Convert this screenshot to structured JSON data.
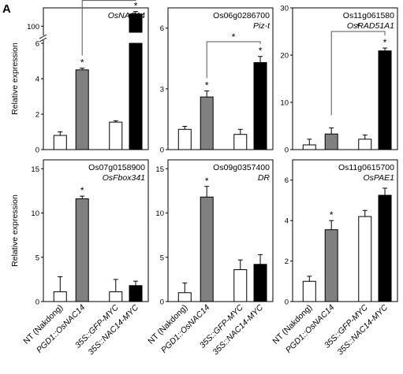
{
  "figure": {
    "panel_label": "A"
  },
  "legend_categories": [
    "NT (Nakdong)",
    "PGD1::OsNAC14",
    "35S::GFP-MYC",
    "35S::NAC14-MYC"
  ],
  "legend_italic": [
    false,
    true,
    true,
    true
  ],
  "bar_fills": [
    "#ffffff",
    "#808080",
    "#ffffff",
    "#000000"
  ],
  "chart_data": [
    {
      "type": "bar",
      "title": "",
      "gene_name": "OsNAC14",
      "ylabel": "Relative expression",
      "categories": [
        "NT (Nakdong)",
        "PGD1::OsNAC14",
        "35S::GFP-MYC",
        "35S::NAC14-MYC"
      ],
      "values": [
        0.8,
        4.5,
        1.55,
        110
      ],
      "errors": [
        0.2,
        0.1,
        0.08,
        2
      ],
      "y_break": {
        "lower": [
          0,
          6
        ],
        "upper": [
          95,
          115
        ]
      },
      "ticks_lower": [
        "0",
        "2",
        "4",
        "6"
      ],
      "ticks_upper": [
        "100"
      ],
      "stars": [
        1,
        3
      ],
      "bracket": [
        1,
        3
      ]
    },
    {
      "type": "bar",
      "title": "Os06g0286700",
      "gene_name": "Piz-t",
      "ylabel": "",
      "categories": [
        "NT (Nakdong)",
        "PGD1::OsNAC14",
        "35S::GFP-MYC",
        "35S::NAC14-MYC"
      ],
      "values": [
        1.0,
        2.6,
        0.75,
        4.3
      ],
      "errors": [
        0.15,
        0.3,
        0.25,
        0.3
      ],
      "ylim": [
        0,
        7
      ],
      "ticks": [
        "0",
        "3",
        "6"
      ],
      "stars": [
        1,
        3
      ],
      "bracket": [
        1,
        3
      ]
    },
    {
      "type": "bar",
      "title": "Os11g061580",
      "gene_name": "OsRAD51A1",
      "ylabel": "",
      "categories": [
        "NT (Nakdong)",
        "PGD1::OsNAC14",
        "35S::GFP-MYC",
        "35S::NAC14-MYC"
      ],
      "values": [
        1.0,
        3.3,
        2.2,
        20.9
      ],
      "errors": [
        1.2,
        1.3,
        0.9,
        0.6
      ],
      "ylim": [
        0,
        30
      ],
      "ticks": [
        "0",
        "10",
        "20",
        "30"
      ],
      "stars": [
        3
      ],
      "bracket": [
        1,
        3
      ]
    },
    {
      "type": "bar",
      "title": "Os07g0158900",
      "gene_name": "OsFbox341",
      "ylabel": "Relative expression",
      "categories": [
        "NT (Nakdong)",
        "PGD1::OsNAC14",
        "35S::GFP-MYC",
        "35S::NAC14-MYC"
      ],
      "values": [
        1.1,
        11.6,
        1.1,
        1.8
      ],
      "errors": [
        1.7,
        0.3,
        1.4,
        0.5
      ],
      "ylim": [
        0,
        16
      ],
      "ticks": [
        "0",
        "5",
        "10",
        "15"
      ],
      "stars": [
        1
      ],
      "bracket": []
    },
    {
      "type": "bar",
      "title": "Os09g0357400",
      "gene_name": "DR",
      "ylabel": "",
      "categories": [
        "NT (Nakdong)",
        "PGD1::OsNAC14",
        "35S::GFP-MYC",
        "35S::NAC14-MYC"
      ],
      "values": [
        1.0,
        11.8,
        3.6,
        4.2
      ],
      "errors": [
        1.1,
        1.2,
        1.1,
        1.1
      ],
      "ylim": [
        0,
        16
      ],
      "ticks": [
        "0",
        "5",
        "10",
        "15"
      ],
      "stars": [
        1
      ],
      "bracket": []
    },
    {
      "type": "bar",
      "title": "Os11g0615700",
      "gene_name": "OsPAE1",
      "ylabel": "",
      "categories": [
        "NT (Nakdong)",
        "PGD1::OsNAC14",
        "35S::GFP-MYC",
        "35S::NAC14-MYC"
      ],
      "values": [
        1.0,
        3.55,
        4.2,
        5.25
      ],
      "errors": [
        0.25,
        0.45,
        0.3,
        0.35
      ],
      "ylim": [
        0,
        7
      ],
      "ticks": [
        "0",
        "2",
        "4",
        "6"
      ],
      "stars": [
        1
      ],
      "bracket": []
    }
  ]
}
